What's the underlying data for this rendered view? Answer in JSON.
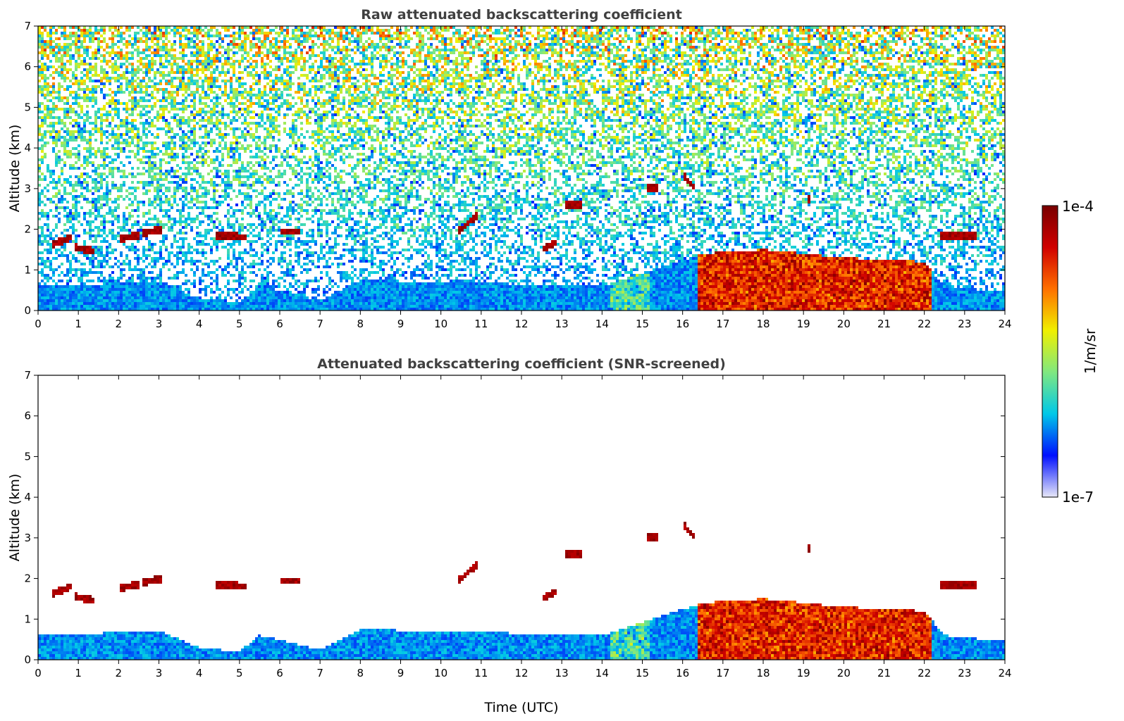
{
  "chart_data": [
    {
      "type": "heatmap",
      "title": "Raw attenuated backscattering coefficient",
      "xlabel": "",
      "ylabel": "Altitude (km)",
      "xlim": [
        0,
        24
      ],
      "ylim": [
        0,
        7
      ],
      "xticks": [
        "0",
        "1",
        "2",
        "3",
        "4",
        "5",
        "6",
        "7",
        "8",
        "9",
        "10",
        "11",
        "12",
        "13",
        "14",
        "15",
        "16",
        "17",
        "18",
        "19",
        "20",
        "21",
        "22",
        "23",
        "24"
      ],
      "yticks": [
        "0",
        "1",
        "2",
        "3",
        "4",
        "5",
        "6",
        "7"
      ],
      "screened": false,
      "boundary_layer_top_km": [
        [
          0,
          0.65
        ],
        [
          1,
          0.6
        ],
        [
          2,
          0.7
        ],
        [
          3,
          0.72
        ],
        [
          4,
          0.3
        ],
        [
          5,
          0.2
        ],
        [
          5.5,
          0.6
        ],
        [
          7,
          0.25
        ],
        [
          8,
          0.75
        ],
        [
          10,
          0.7
        ],
        [
          12,
          0.65
        ],
        [
          13,
          0.6
        ],
        [
          14,
          0.6
        ],
        [
          16.5,
          1.4
        ],
        [
          18,
          1.5
        ],
        [
          20,
          1.3
        ],
        [
          22,
          1.2
        ],
        [
          22.5,
          0.6
        ],
        [
          24,
          0.45
        ]
      ],
      "cloud_layers": [
        {
          "t_start": 0.35,
          "t_end": 0.85,
          "alt_start_km": 1.62,
          "alt_end_km": 1.82
        },
        {
          "t_start": 0.9,
          "t_end": 1.4,
          "alt_start_km": 1.55,
          "alt_end_km": 1.45
        },
        {
          "t_start": 2.0,
          "t_end": 2.5,
          "alt_start_km": 1.75,
          "alt_end_km": 1.85
        },
        {
          "t_start": 2.6,
          "t_end": 3.1,
          "alt_start_km": 1.9,
          "alt_end_km": 2.0
        },
        {
          "t_start": 4.4,
          "t_end": 5.2,
          "alt_start_km": 1.85,
          "alt_end_km": 1.8
        },
        {
          "t_start": 6.0,
          "t_end": 6.5,
          "alt_start_km": 1.95,
          "alt_end_km": 1.95
        },
        {
          "t_start": 10.4,
          "t_end": 10.9,
          "alt_start_km": 1.9,
          "alt_end_km": 2.35
        },
        {
          "t_start": 12.5,
          "t_end": 12.9,
          "alt_start_km": 1.5,
          "alt_end_km": 1.7
        },
        {
          "t_start": 13.1,
          "t_end": 13.5,
          "alt_start_km": 2.6,
          "alt_end_km": 2.6
        },
        {
          "t_start": 15.1,
          "t_end": 15.4,
          "alt_start_km": 3.0,
          "alt_end_km": 3.0
        },
        {
          "t_start": 16.0,
          "t_end": 16.3,
          "alt_start_km": 3.35,
          "alt_end_km": 3.0
        },
        {
          "t_start": 19.1,
          "t_end": 19.2,
          "alt_start_km": 2.85,
          "alt_end_km": 2.5
        },
        {
          "t_start": 22.4,
          "t_end": 23.3,
          "alt_start_km": 1.85,
          "alt_end_km": 1.85
        }
      ]
    },
    {
      "type": "heatmap",
      "title": "Attenuated backscattering coefficient (SNR-screened)",
      "xlabel": "Time (UTC)",
      "ylabel": "Altitude (km)",
      "xlim": [
        0,
        24
      ],
      "ylim": [
        0,
        7
      ],
      "xticks": [
        "0",
        "1",
        "2",
        "3",
        "4",
        "5",
        "6",
        "7",
        "8",
        "9",
        "10",
        "11",
        "12",
        "13",
        "14",
        "15",
        "16",
        "17",
        "18",
        "19",
        "20",
        "21",
        "22",
        "23",
        "24"
      ],
      "yticks": [
        "0",
        "1",
        "2",
        "3",
        "4",
        "5",
        "6",
        "7"
      ],
      "screened": true
    }
  ],
  "colorbar": {
    "label": "1/m/sr",
    "max_label": "1e-4",
    "min_label": "1e-7",
    "scale": "log",
    "range": [
      1e-07,
      0.0001
    ],
    "colors": [
      "#e8e8f8",
      "#0010ff",
      "#00c8e8",
      "#80e880",
      "#f0f000",
      "#ff7000",
      "#d00000",
      "#780000"
    ]
  }
}
